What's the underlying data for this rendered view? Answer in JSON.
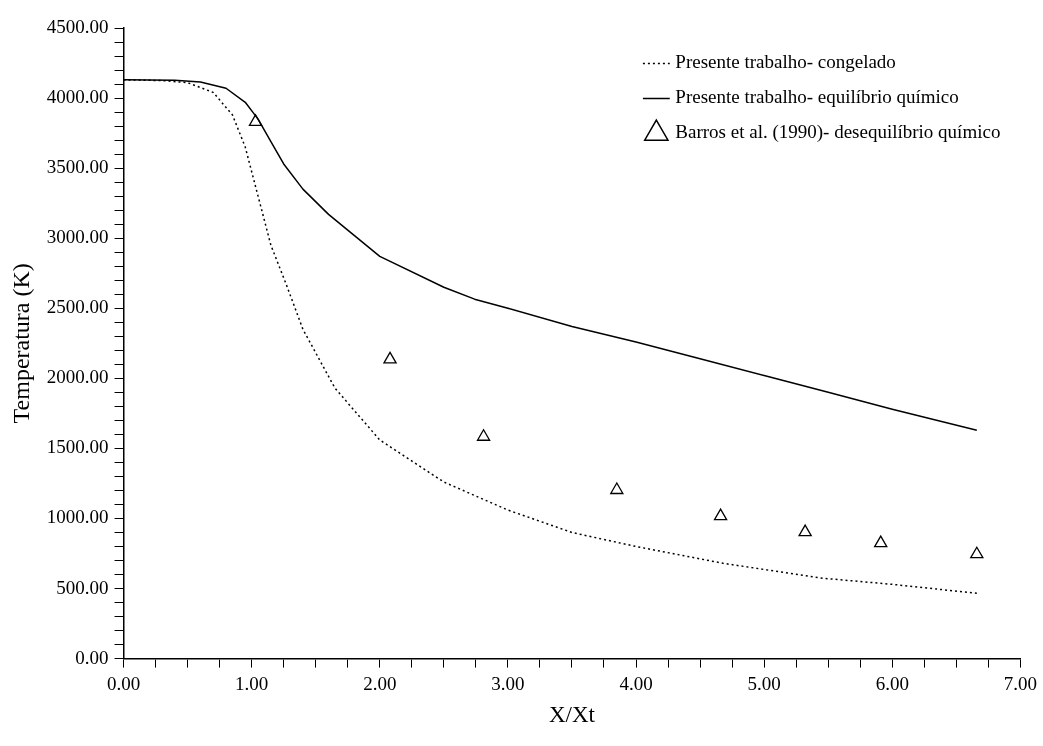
{
  "chart_data": {
    "type": "line",
    "xlabel": "X/Xt",
    "ylabel": "Temperatura (K)",
    "xlim": [
      0,
      7
    ],
    "ylim": [
      0,
      4500
    ],
    "xticks": [
      {
        "value": 0,
        "label": "0.00"
      },
      {
        "value": 0.25,
        "label": null
      },
      {
        "value": 0.5,
        "label": null
      },
      {
        "value": 0.75,
        "label": null
      },
      {
        "value": 1,
        "label": "1.00"
      },
      {
        "value": 1.25,
        "label": null
      },
      {
        "value": 1.5,
        "label": null
      },
      {
        "value": 1.75,
        "label": null
      },
      {
        "value": 2,
        "label": "2.00"
      },
      {
        "value": 2.25,
        "label": null
      },
      {
        "value": 2.5,
        "label": null
      },
      {
        "value": 2.75,
        "label": null
      },
      {
        "value": 3,
        "label": "3.00"
      },
      {
        "value": 3.25,
        "label": null
      },
      {
        "value": 3.5,
        "label": null
      },
      {
        "value": 3.75,
        "label": null
      },
      {
        "value": 4,
        "label": "4.00"
      },
      {
        "value": 4.25,
        "label": null
      },
      {
        "value": 4.5,
        "label": null
      },
      {
        "value": 4.75,
        "label": null
      },
      {
        "value": 5,
        "label": "5.00"
      },
      {
        "value": 5.25,
        "label": null
      },
      {
        "value": 5.5,
        "label": null
      },
      {
        "value": 5.75,
        "label": null
      },
      {
        "value": 6,
        "label": "6.00"
      },
      {
        "value": 6.25,
        "label": null
      },
      {
        "value": 6.5,
        "label": null
      },
      {
        "value": 6.75,
        "label": null
      },
      {
        "value": 7,
        "label": "7.00"
      }
    ],
    "yticks": [
      {
        "value": 0,
        "label": "0.00"
      },
      {
        "value": 100,
        "label": null
      },
      {
        "value": 200,
        "label": null
      },
      {
        "value": 300,
        "label": null
      },
      {
        "value": 400,
        "label": null
      },
      {
        "value": 500,
        "label": "500.00"
      },
      {
        "value": 600,
        "label": null
      },
      {
        "value": 700,
        "label": null
      },
      {
        "value": 800,
        "label": null
      },
      {
        "value": 900,
        "label": null
      },
      {
        "value": 1000,
        "label": "1000.00"
      },
      {
        "value": 1100,
        "label": null
      },
      {
        "value": 1200,
        "label": null
      },
      {
        "value": 1300,
        "label": null
      },
      {
        "value": 1400,
        "label": null
      },
      {
        "value": 1500,
        "label": "1500.00"
      },
      {
        "value": 1600,
        "label": null
      },
      {
        "value": 1700,
        "label": null
      },
      {
        "value": 1800,
        "label": null
      },
      {
        "value": 1900,
        "label": null
      },
      {
        "value": 2000,
        "label": "2000.00"
      },
      {
        "value": 2100,
        "label": null
      },
      {
        "value": 2200,
        "label": null
      },
      {
        "value": 2300,
        "label": null
      },
      {
        "value": 2400,
        "label": null
      },
      {
        "value": 2500,
        "label": "2500.00"
      },
      {
        "value": 2600,
        "label": null
      },
      {
        "value": 2700,
        "label": null
      },
      {
        "value": 2800,
        "label": null
      },
      {
        "value": 2900,
        "label": null
      },
      {
        "value": 3000,
        "label": "3000.00"
      },
      {
        "value": 3100,
        "label": null
      },
      {
        "value": 3200,
        "label": null
      },
      {
        "value": 3300,
        "label": null
      },
      {
        "value": 3400,
        "label": null
      },
      {
        "value": 3500,
        "label": "3500.00"
      },
      {
        "value": 3600,
        "label": null
      },
      {
        "value": 3700,
        "label": null
      },
      {
        "value": 3800,
        "label": null
      },
      {
        "value": 3900,
        "label": null
      },
      {
        "value": 4000,
        "label": "4000.00"
      },
      {
        "value": 4100,
        "label": null
      },
      {
        "value": 4200,
        "label": null
      },
      {
        "value": 4300,
        "label": null
      },
      {
        "value": 4400,
        "label": null
      },
      {
        "value": 4500,
        "label": "4500.00"
      }
    ],
    "grid": false,
    "legend": "top right",
    "series": [
      {
        "name": "Presente trabalho- congelado",
        "type": "line",
        "color": "#000000",
        "line_style": "dotted",
        "marker": "none",
        "x": [
          0,
          0.3,
          0.5,
          0.7,
          0.85,
          0.95,
          1.05,
          1.15,
          1.27,
          1.4,
          1.65,
          2.0,
          2.5,
          3.0,
          3.5,
          4.0,
          4.68,
          5.44,
          6.0,
          6.66
        ],
        "values": [
          4130,
          4125,
          4110,
          4040,
          3880,
          3650,
          3300,
          2950,
          2670,
          2350,
          1930,
          1560,
          1260,
          1060,
          900,
          800,
          680,
          575,
          530,
          466
        ]
      },
      {
        "name": "Presente trabalho- equilíbrio químico",
        "type": "line",
        "color": "#000000",
        "line_style": "solid",
        "marker": "none",
        "x": [
          0,
          0.4,
          0.6,
          0.8,
          0.95,
          1.05,
          1.15,
          1.25,
          1.4,
          1.6,
          2.0,
          2.5,
          2.74,
          3.0,
          3.5,
          4.0,
          4.5,
          5.0,
          5.5,
          6.0,
          6.66
        ],
        "values": [
          4130,
          4128,
          4115,
          4070,
          3970,
          3850,
          3690,
          3530,
          3350,
          3170,
          2870,
          2650,
          2565,
          2500,
          2370,
          2260,
          2140,
          2020,
          1900,
          1780,
          1630
        ]
      },
      {
        "name": "Barros et al. (1990)- desequilíbrio químico",
        "type": "scatter",
        "color": "#000000",
        "marker": "triangle",
        "x": [
          1.03,
          2.08,
          2.81,
          3.85,
          4.66,
          5.32,
          5.91,
          6.66
        ],
        "values": [
          3830,
          2135,
          1583,
          1203,
          1017,
          903,
          824,
          745
        ]
      }
    ]
  }
}
